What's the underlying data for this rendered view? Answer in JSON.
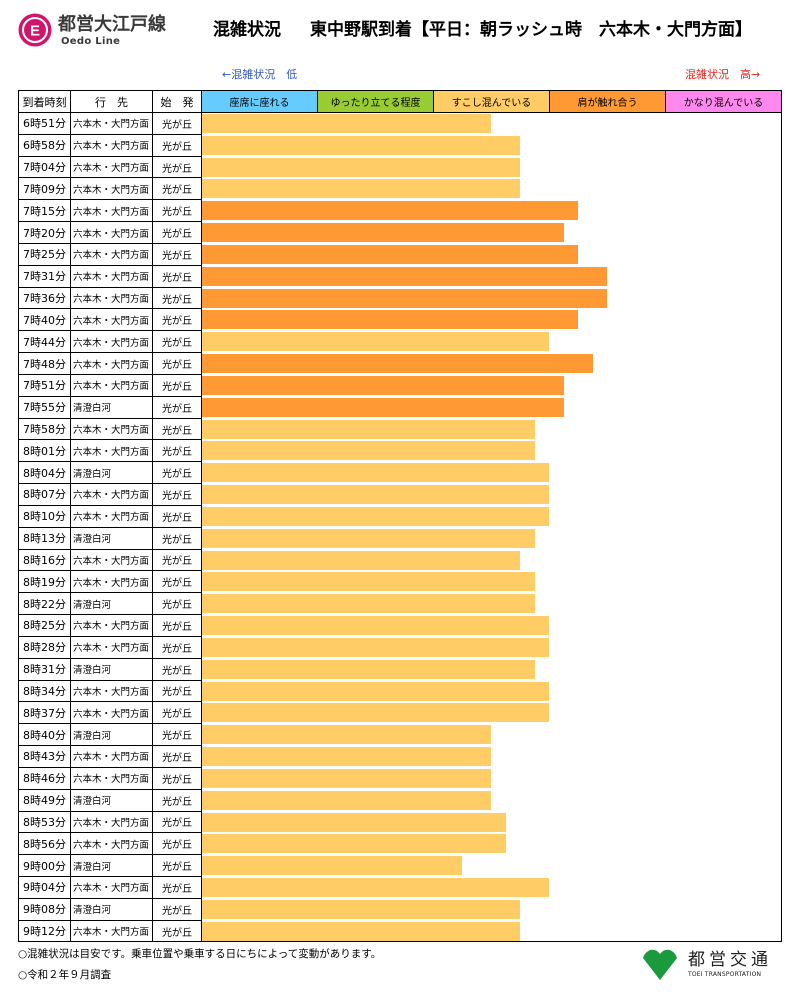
{
  "logo": {
    "letter": "E",
    "name_ja": "都営大江戸線",
    "name_en": "Oedo Line",
    "color": "#d2156c"
  },
  "title": {
    "label": "混雑状況",
    "main": "東中野駅到着【平日：朝ラッシュ時　六本木・大門方面】"
  },
  "scale": {
    "low_label": "←混雑状況　低",
    "high_label": "混雑状況　高→"
  },
  "table": {
    "headers": {
      "time": "到着時刻",
      "destination": "行　先",
      "origin": "始　発"
    }
  },
  "chart_data": {
    "type": "bar",
    "xlim": [
      0,
      5
    ],
    "levels": [
      {
        "label": "座席に座れる",
        "color": "#66ccff"
      },
      {
        "label": "ゆったり立てる程度",
        "color": "#99cc33"
      },
      {
        "label": "すこし混んでいる",
        "color": "#ffcc66"
      },
      {
        "label": "肩が触れ合う",
        "color": "#ff9933"
      },
      {
        "label": "かなり混んでいる",
        "color": "#ff88ee"
      }
    ],
    "categories": [
      "6時51分",
      "6時58分",
      "7時04分",
      "7時09分",
      "7時15分",
      "7時20分",
      "7時25分",
      "7時31分",
      "7時36分",
      "7時40分",
      "7時44分",
      "7時48分",
      "7時51分",
      "7時55分",
      "7時58分",
      "8時01分",
      "8時04分",
      "8時07分",
      "8時10分",
      "8時13分",
      "8時16分",
      "8時19分",
      "8時22分",
      "8時25分",
      "8時28分",
      "8時31分",
      "8時34分",
      "8時37分",
      "8時40分",
      "8時43分",
      "8時46分",
      "8時49分",
      "8時53分",
      "8時56分",
      "9時00分",
      "9時04分",
      "9時08分",
      "9時12分"
    ],
    "destinations": [
      "六本木・大門方面",
      "六本木・大門方面",
      "六本木・大門方面",
      "六本木・大門方面",
      "六本木・大門方面",
      "六本木・大門方面",
      "六本木・大門方面",
      "六本木・大門方面",
      "六本木・大門方面",
      "六本木・大門方面",
      "六本木・大門方面",
      "六本木・大門方面",
      "六本木・大門方面",
      "清澄白河",
      "六本木・大門方面",
      "六本木・大門方面",
      "清澄白河",
      "六本木・大門方面",
      "六本木・大門方面",
      "清澄白河",
      "六本木・大門方面",
      "六本木・大門方面",
      "清澄白河",
      "六本木・大門方面",
      "六本木・大門方面",
      "清澄白河",
      "六本木・大門方面",
      "六本木・大門方面",
      "清澄白河",
      "六本木・大門方面",
      "六本木・大門方面",
      "清澄白河",
      "六本木・大門方面",
      "六本木・大門方面",
      "清澄白河",
      "六本木・大門方面",
      "清澄白河",
      "六本木・大門方面"
    ],
    "origins": [
      "光が丘",
      "光が丘",
      "光が丘",
      "光が丘",
      "光が丘",
      "光が丘",
      "光が丘",
      "光が丘",
      "光が丘",
      "光が丘",
      "光が丘",
      "光が丘",
      "光が丘",
      "光が丘",
      "光が丘",
      "光が丘",
      "光が丘",
      "光が丘",
      "光が丘",
      "光が丘",
      "光が丘",
      "光が丘",
      "光が丘",
      "光が丘",
      "光が丘",
      "光が丘",
      "光が丘",
      "光が丘",
      "光が丘",
      "光が丘",
      "光が丘",
      "光が丘",
      "光が丘",
      "光が丘",
      "光が丘",
      "光が丘",
      "光が丘",
      "光が丘"
    ],
    "values": [
      2.5,
      2.75,
      2.75,
      2.75,
      3.25,
      3.125,
      3.25,
      3.5,
      3.5,
      3.25,
      3.0,
      3.375,
      3.125,
      3.125,
      2.875,
      2.875,
      3.0,
      3.0,
      3.0,
      2.875,
      2.75,
      2.875,
      2.875,
      3.0,
      3.0,
      2.875,
      3.0,
      3.0,
      2.5,
      2.5,
      2.5,
      2.5,
      2.625,
      2.625,
      2.25,
      3.0,
      2.75,
      2.75
    ]
  },
  "footer": {
    "notes": [
      "○混雑状況は目安です。乗車位置や乗車する日にちによって変動があります。",
      "○令和２年９月調査"
    ],
    "toei_logo": {
      "name_ja": "都営交通",
      "name_en": "TOEI TRANSPORTATION",
      "color": "#1a9a3c"
    }
  }
}
